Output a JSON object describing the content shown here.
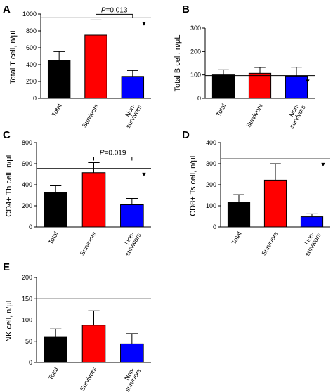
{
  "chart_data": [
    {
      "type": "bar",
      "panel": "A",
      "ylabel": "Total T cell, n/μL",
      "ylim": [
        0,
        1000
      ],
      "yticks": [
        "0",
        "200",
        "400",
        "600",
        "800",
        "1000"
      ],
      "categories": [
        "Total",
        "Survivors",
        "Non-survivors"
      ],
      "category_lines": [
        [
          "Total"
        ],
        [
          "Survivors"
        ],
        [
          "Non-",
          "survivors"
        ]
      ],
      "values": [
        450,
        750,
        260
      ],
      "errors": [
        105,
        180,
        70
      ],
      "colors": [
        "#000000",
        "#ff0000",
        "#0000ff"
      ],
      "reference_line": 955,
      "marker": "▼",
      "significance": {
        "between": [
          1,
          2
        ],
        "label_italic": "P",
        "label_rest": "=0.013"
      }
    },
    {
      "type": "bar",
      "panel": "B",
      "ylabel": "Total B cell, n/μL",
      "ylim": [
        0,
        300
      ],
      "yticks": [
        "0",
        "100",
        "200",
        "300"
      ],
      "categories": [
        "Total",
        "Survivors",
        "Non-survivors"
      ],
      "category_lines": [
        [
          "Total"
        ],
        [
          "Survivors"
        ],
        [
          "Non-",
          "survivors"
        ]
      ],
      "values": [
        100,
        107,
        95
      ],
      "errors": [
        22,
        25,
        38
      ],
      "colors": [
        "#000000",
        "#ff0000",
        "#0000ff"
      ],
      "reference_line": 97,
      "marker": "▼"
    },
    {
      "type": "bar",
      "panel": "C",
      "ylabel": "CD4+ Th cell, n/μL",
      "ylim": [
        0,
        800
      ],
      "yticks": [
        "0",
        "200",
        "400",
        "600",
        "800"
      ],
      "categories": [
        "Total",
        "Survivors",
        "Non-survivors"
      ],
      "category_lines": [
        [
          "Total"
        ],
        [
          "Survivors"
        ],
        [
          "Non-",
          "survivors"
        ]
      ],
      "values": [
        325,
        515,
        210
      ],
      "errors": [
        65,
        95,
        60
      ],
      "colors": [
        "#000000",
        "#ff0000",
        "#0000ff"
      ],
      "reference_line": 555,
      "marker": "▼",
      "significance": {
        "between": [
          1,
          2
        ],
        "label_italic": "P",
        "label_rest": "=0.019"
      }
    },
    {
      "type": "bar",
      "panel": "D",
      "ylabel": "CD8+ Ts cell, n/μL",
      "ylim": [
        0,
        400
      ],
      "yticks": [
        "0",
        "100",
        "200",
        "300",
        "400"
      ],
      "categories": [
        "Total",
        "Survivors",
        "Non-survivors"
      ],
      "category_lines": [
        [
          "Total"
        ],
        [
          "Survivors"
        ],
        [
          "Non-",
          "survivors"
        ]
      ],
      "values": [
        115,
        222,
        48
      ],
      "errors": [
        38,
        78,
        14
      ],
      "colors": [
        "#000000",
        "#ff0000",
        "#0000ff"
      ],
      "reference_line": 323,
      "marker": "▼"
    },
    {
      "type": "bar",
      "panel": "E",
      "ylabel": "NK cell, n/μL",
      "ylim": [
        0,
        200
      ],
      "yticks": [
        "0",
        "50",
        "100",
        "150",
        "200"
      ],
      "categories": [
        "Total",
        "Survivors",
        "Non-survivors"
      ],
      "category_lines": [
        [
          "Total"
        ],
        [
          "Survivors"
        ],
        [
          "Non-",
          "survivors"
        ]
      ],
      "values": [
        61,
        88,
        44
      ],
      "errors": [
        18,
        34,
        24
      ],
      "colors": [
        "#000000",
        "#ff0000",
        "#0000ff"
      ],
      "reference_line": 150
    }
  ]
}
